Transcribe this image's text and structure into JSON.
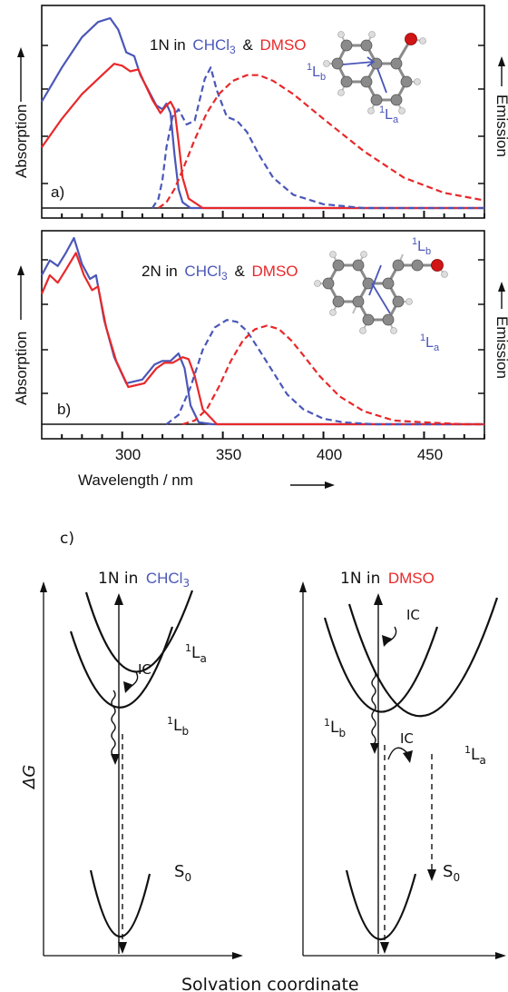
{
  "colors": {
    "chcl3": "#4a57b8",
    "dmso": "#e8282a",
    "axis": "#111111",
    "atom_c": "#8a8a8a",
    "atom_h": "#d9d9d9",
    "atom_o": "#d01515"
  },
  "panel_a": {
    "tag": "a)",
    "title_mol": "1N in",
    "title_s1": "CHCl",
    "title_sub": "3",
    "title_amp": "&",
    "title_s2": "DMSO",
    "ylabel": "Absorption",
    "y2label": "Emission",
    "mol_label_lb_pre": "1",
    "mol_label_lb": "L",
    "mol_label_lb_sub": "b",
    "mol_label_la_pre": "1",
    "mol_label_la": "L",
    "mol_label_la_sub": "a"
  },
  "panel_b": {
    "tag": "b)",
    "title_mol": "2N in",
    "title_s1": "CHCl",
    "title_sub": "3",
    "title_amp": "&",
    "title_s2": "DMSO",
    "ylabel": "Absorption",
    "y2label": "Emission",
    "mol_label_lb_pre": "1",
    "mol_label_lb": "L",
    "mol_label_lb_sub": "b",
    "mol_label_la_pre": "1",
    "mol_label_la": "L",
    "mol_label_la_sub": "a"
  },
  "xaxis": {
    "label": "Wavelength / nm",
    "ticks": [
      "300",
      "350",
      "400",
      "450"
    ]
  },
  "panel_c": {
    "tag": "c)",
    "left_title": "1N in",
    "left_title_solvent": "CHCl",
    "left_title_sub": "3",
    "right_title": "1N in",
    "right_title_solvent": "DMSO",
    "yaxis_label": "ΔG",
    "xaxis_label": "Solvation coordinate",
    "ic_label": "IC",
    "state_prefix": "1",
    "state_L": "L",
    "sub_a": "a",
    "sub_b": "b",
    "s0": "S",
    "s0_sub": "0"
  },
  "chart_data": [
    {
      "type": "line",
      "panel": "a",
      "xlabel": "Wavelength / nm",
      "ylabel": "Absorption",
      "y2label": "Emission",
      "xlim": [
        260,
        480
      ],
      "series": [
        {
          "name": "CHCl3",
          "style": "absorption",
          "x": [
            260,
            270,
            280,
            288,
            294,
            298,
            302,
            306,
            309,
            313,
            317,
            320,
            322,
            324,
            326,
            328,
            330,
            334,
            340,
            480
          ],
          "y": [
            0.56,
            0.74,
            0.9,
            0.98,
            1.0,
            0.94,
            0.82,
            0.8,
            0.7,
            0.62,
            0.54,
            0.52,
            0.55,
            0.5,
            0.28,
            0.1,
            0.03,
            0.0,
            0.0,
            0.0
          ]
        },
        {
          "name": "DMSO",
          "style": "absorption",
          "x": [
            260,
            270,
            280,
            290,
            296,
            300,
            304,
            308,
            311,
            315,
            319,
            322,
            324,
            326,
            328,
            330,
            333,
            340,
            350,
            480
          ],
          "y": [
            0.32,
            0.47,
            0.6,
            0.7,
            0.76,
            0.75,
            0.72,
            0.73,
            0.66,
            0.57,
            0.5,
            0.54,
            0.56,
            0.52,
            0.35,
            0.16,
            0.05,
            0.0,
            0.0,
            0.0
          ]
        },
        {
          "name": "CHCl3",
          "style": "emission",
          "x": [
            315,
            318,
            320,
            322,
            325,
            328,
            332,
            336,
            341,
            344,
            347,
            352,
            357,
            362,
            368,
            375,
            385,
            400,
            420,
            480
          ],
          "y": [
            0.0,
            0.05,
            0.15,
            0.32,
            0.48,
            0.52,
            0.44,
            0.46,
            0.68,
            0.74,
            0.62,
            0.48,
            0.46,
            0.4,
            0.28,
            0.16,
            0.07,
            0.02,
            0.0,
            0.0
          ]
        },
        {
          "name": "DMSO",
          "style": "emission",
          "x": [
            318,
            322,
            326,
            330,
            336,
            342,
            348,
            355,
            362,
            368,
            375,
            385,
            400,
            420,
            440,
            460,
            480
          ],
          "y": [
            0.0,
            0.03,
            0.1,
            0.2,
            0.36,
            0.5,
            0.6,
            0.67,
            0.7,
            0.7,
            0.67,
            0.6,
            0.47,
            0.3,
            0.16,
            0.08,
            0.04
          ]
        }
      ]
    },
    {
      "type": "line",
      "panel": "b",
      "xlabel": "Wavelength / nm",
      "ylabel": "Absorption",
      "y2label": "Emission",
      "xlim": [
        260,
        480
      ],
      "series": [
        {
          "name": "CHCl3",
          "style": "absorption",
          "x": [
            260,
            264,
            268,
            272,
            276,
            280,
            284,
            287,
            291,
            296,
            302,
            310,
            316,
            320,
            324,
            328,
            331,
            334,
            338,
            345,
            480
          ],
          "y": [
            0.8,
            0.88,
            0.85,
            0.92,
            1.0,
            0.86,
            0.78,
            0.8,
            0.56,
            0.36,
            0.22,
            0.24,
            0.32,
            0.34,
            0.34,
            0.38,
            0.3,
            0.1,
            0.01,
            0.0,
            0.0
          ]
        },
        {
          "name": "DMSO",
          "style": "absorption",
          "x": [
            260,
            264,
            268,
            272,
            277,
            281,
            285,
            288,
            292,
            297,
            303,
            311,
            317,
            321,
            325,
            330,
            333,
            336,
            340,
            347,
            480
          ],
          "y": [
            0.7,
            0.8,
            0.76,
            0.83,
            0.92,
            0.8,
            0.72,
            0.74,
            0.52,
            0.34,
            0.2,
            0.22,
            0.3,
            0.33,
            0.33,
            0.36,
            0.35,
            0.26,
            0.08,
            0.0,
            0.0
          ]
        },
        {
          "name": "CHCl3",
          "style": "emission",
          "x": [
            322,
            328,
            334,
            340,
            346,
            352,
            357,
            362,
            368,
            375,
            382,
            390,
            400,
            410,
            425,
            440,
            480
          ],
          "y": [
            0.0,
            0.05,
            0.2,
            0.4,
            0.52,
            0.56,
            0.55,
            0.5,
            0.4,
            0.28,
            0.16,
            0.08,
            0.03,
            0.01,
            0.0,
            0.0,
            0.0
          ]
        },
        {
          "name": "DMSO",
          "style": "emission",
          "x": [
            330,
            336,
            342,
            348,
            354,
            360,
            366,
            372,
            378,
            384,
            390,
            398,
            408,
            420,
            435,
            450,
            470,
            480
          ],
          "y": [
            0.0,
            0.02,
            0.08,
            0.2,
            0.34,
            0.45,
            0.51,
            0.53,
            0.51,
            0.45,
            0.37,
            0.26,
            0.15,
            0.07,
            0.02,
            0.01,
            0.0,
            0.0
          ]
        }
      ]
    }
  ]
}
